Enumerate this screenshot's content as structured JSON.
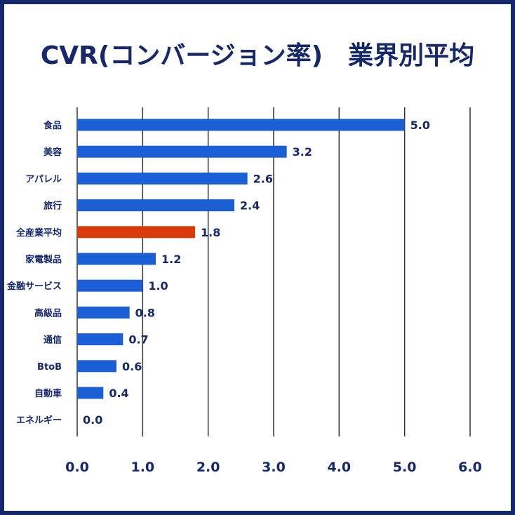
{
  "chart_data": {
    "type": "bar",
    "orientation": "horizontal",
    "title": "CVR(コンバージョン率)　業界別平均",
    "categories": [
      "食品",
      "美容",
      "アパレル",
      "旅行",
      "全産業平均",
      "家電製品",
      "金融サービス",
      "高級品",
      "通信",
      "BtoB",
      "自動車",
      "エネルギー"
    ],
    "values": [
      5.0,
      3.2,
      2.6,
      2.4,
      1.8,
      1.2,
      1.0,
      0.8,
      0.7,
      0.6,
      0.4,
      0.0
    ],
    "value_labels": [
      "5.0",
      "3.2",
      "2.6",
      "2.4",
      "1.8",
      "1.2",
      "1.0",
      "0.8",
      "0.7",
      "0.6",
      "0.4",
      "0.0"
    ],
    "xlim": [
      0,
      6
    ],
    "x_ticks": [
      "0.0",
      "1.0",
      "2.0",
      "3.0",
      "4.0",
      "5.0",
      "6.0"
    ],
    "grid": "vertical",
    "colors": {
      "bar": "#1a5fd6",
      "highlight_bar": "#d93a0c",
      "highlight_category": "全産業平均",
      "text": "#14286b",
      "frame": "#14286b",
      "grid": "#333333"
    }
  }
}
